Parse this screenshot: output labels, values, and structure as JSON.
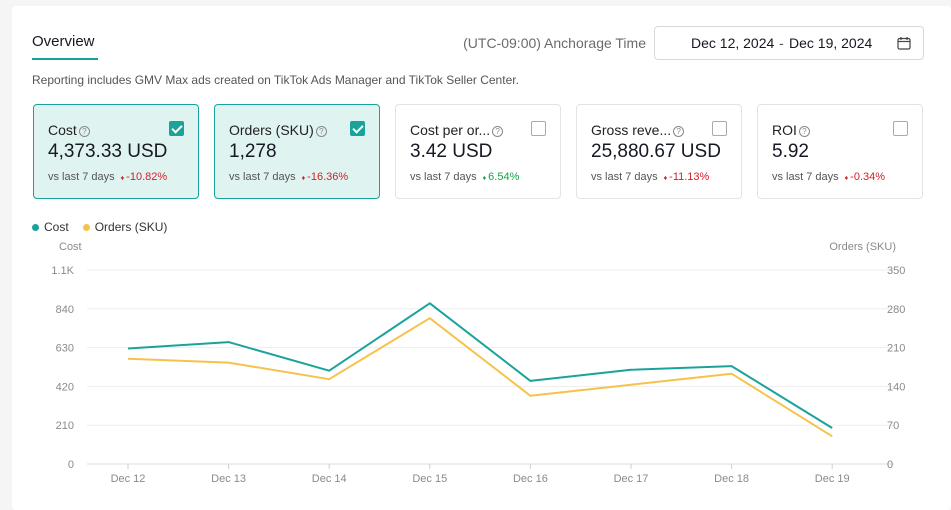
{
  "header": {
    "tab": "Overview",
    "timezone": "(UTC-09:00) Anchorage Time",
    "date_start": "Dec 12, 2024",
    "date_sep": "-",
    "date_end": "Dec 19, 2024"
  },
  "note": "Reporting includes GMV Max ads created on TikTok Ads Manager and TikTok Seller Center.",
  "cards": [
    {
      "name": "Cost",
      "value": "4,373.33 USD",
      "cmp": "vs last 7 days",
      "change": "-10.82%",
      "dir": "down",
      "selected": true
    },
    {
      "name": "Orders (SKU)",
      "value": "1,278",
      "cmp": "vs last 7 days",
      "change": "-16.36%",
      "dir": "down",
      "selected": true
    },
    {
      "name": "Cost per or...",
      "value": "3.42 USD",
      "cmp": "vs last 7 days",
      "change": "6.54%",
      "dir": "up",
      "selected": false
    },
    {
      "name": "Gross reve...",
      "value": "25,880.67 USD",
      "cmp": "vs last 7 days",
      "change": "-11.13%",
      "dir": "down",
      "selected": false
    },
    {
      "name": "ROI",
      "value": "5.92",
      "cmp": "vs last 7 days",
      "change": "-0.34%",
      "dir": "down",
      "selected": false
    }
  ],
  "chart_data": {
    "type": "line",
    "x": [
      "Dec 12",
      "Dec 13",
      "Dec 14",
      "Dec 15",
      "Dec 16",
      "Dec 17",
      "Dec 18",
      "Dec 19"
    ],
    "series": [
      {
        "name": "Cost",
        "axis": "left",
        "color": "#1aa39a",
        "values": [
          625,
          660,
          505,
          870,
          450,
          510,
          530,
          195
        ]
      },
      {
        "name": "Orders (SKU)",
        "axis": "right",
        "color": "#f5c34c",
        "values": [
          190,
          183,
          153,
          263,
          123,
          143,
          163,
          50
        ]
      }
    ],
    "ylabel_left": "Cost",
    "ylabel_right": "Orders (SKU)",
    "yticks_left": [
      "0",
      "210",
      "420",
      "630",
      "840",
      "1.1K"
    ],
    "yticks_right": [
      "0",
      "70",
      "140",
      "210",
      "280",
      "350"
    ],
    "ylim_left": [
      0,
      1050
    ],
    "ylim_right": [
      0,
      350
    ],
    "grid": true,
    "legend": "top-left"
  },
  "colors": {
    "accent": "#12a39b",
    "down": "#d32029",
    "up": "#19a349",
    "orders": "#f5c34c"
  },
  "icons": {
    "date": "calendar-icon",
    "info": "info-icon",
    "check": "checkbox-icon"
  }
}
